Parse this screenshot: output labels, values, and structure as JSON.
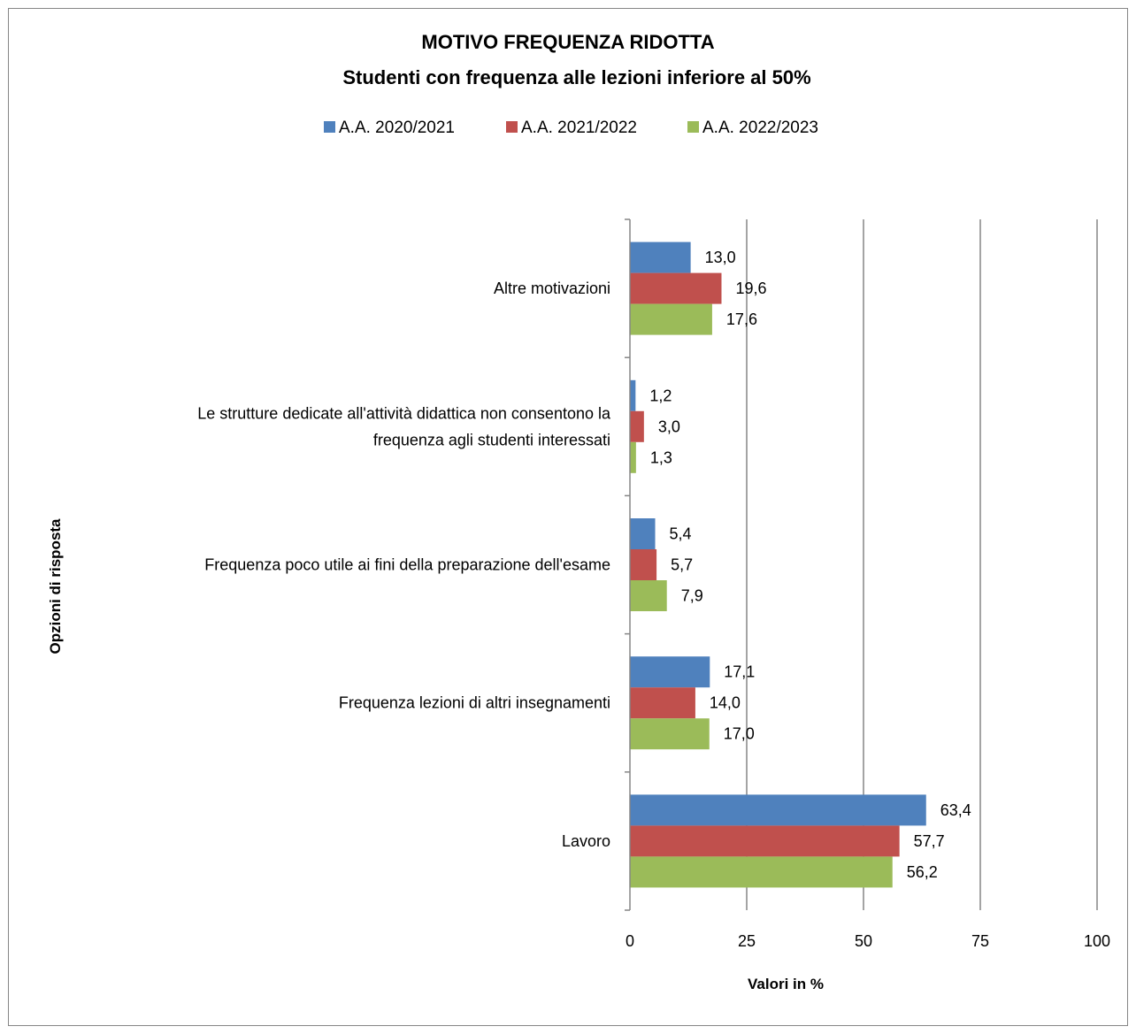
{
  "chart_data": {
    "type": "bar",
    "orientation": "horizontal",
    "title": "MOTIVO FREQUENZA RIDOTTA",
    "subtitle": "Studenti con frequenza alle lezioni  inferiore  al 50%",
    "xlabel": "Valori in %",
    "ylabel": "Opzioni di risposta",
    "xlim": [
      0,
      100
    ],
    "xticks": [
      "0",
      "25",
      "50",
      "75",
      "100"
    ],
    "grid": true,
    "legend_position": "top",
    "categories": [
      "Altre motivazioni",
      "Le strutture dedicate all'attività didattica non consentono la frequenza agli studenti interessati",
      "Frequenza poco utile ai fini della preparazione dell'esame",
      "Frequenza lezioni di altri insegnamenti",
      "Lavoro"
    ],
    "category_lines": [
      [
        "Altre motivazioni"
      ],
      [
        "Le strutture dedicate all'attività didattica non consentono la",
        "frequenza agli studenti interessati"
      ],
      [
        "Frequenza poco utile ai fini della preparazione dell'esame"
      ],
      [
        "Frequenza lezioni di altri insegnamenti"
      ],
      [
        "Lavoro"
      ]
    ],
    "series": [
      {
        "name": "A.A. 2020/2021",
        "color": "#4F81BD",
        "values": [
          13.0,
          1.2,
          5.4,
          17.1,
          63.4
        ],
        "labels": [
          "13,0",
          "1,2",
          "5,4",
          "17,1",
          "63,4"
        ]
      },
      {
        "name": "A.A. 2021/2022",
        "color": "#C0504D",
        "values": [
          19.6,
          3.0,
          5.7,
          14.0,
          57.7
        ],
        "labels": [
          "19,6",
          "3,0",
          "5,7",
          "14,0",
          "57,7"
        ]
      },
      {
        "name": "A.A. 2022/2023",
        "color": "#9BBB59",
        "values": [
          17.6,
          1.3,
          7.9,
          17.0,
          56.2
        ],
        "labels": [
          "17,6",
          "1,3",
          "7,9",
          "17,0",
          "56,2"
        ]
      }
    ]
  }
}
